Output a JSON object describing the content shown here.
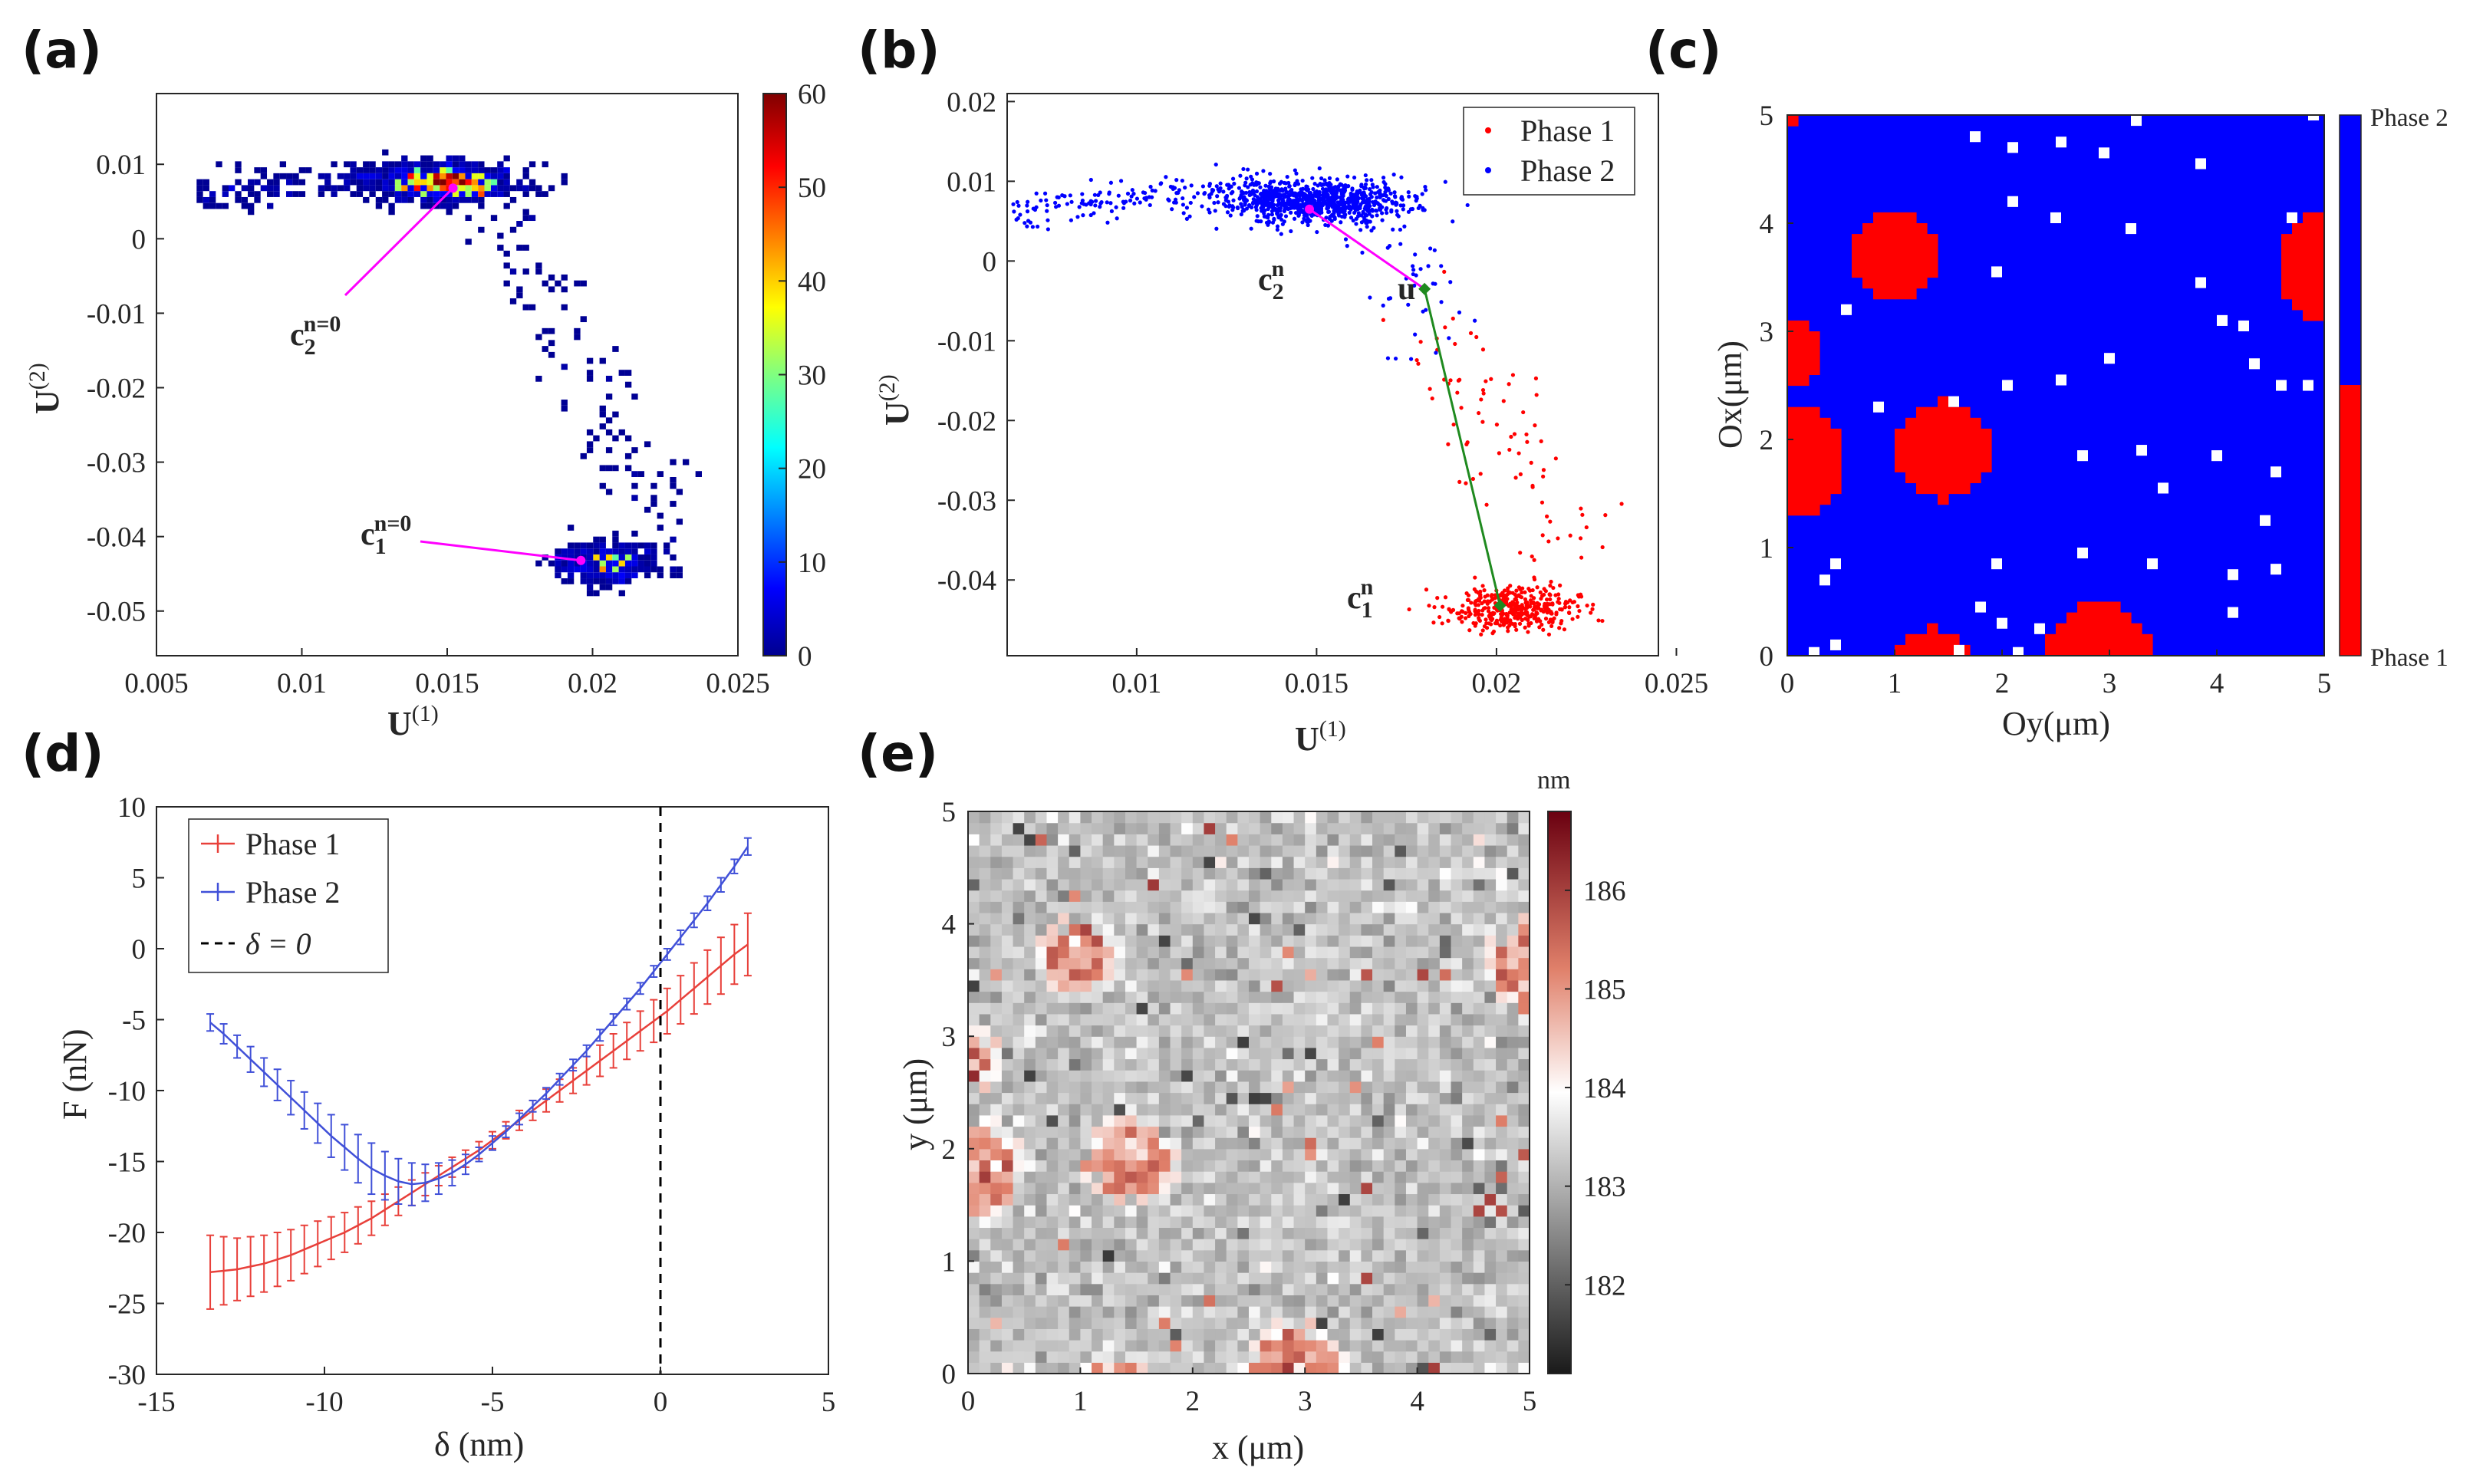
{
  "figure": {
    "panel_labels": [
      "(a)",
      "(b)",
      "(c)",
      "(d)",
      "(e)"
    ]
  },
  "chart_data": [
    {
      "panel": "(a)",
      "type": "heatmap",
      "description_kind": "2D histogram of points in U(1)-U(2) space",
      "xlabel": "U(1)",
      "ylabel": "U(2)",
      "xlabel_main": "U",
      "xlabel_sup": "(1)",
      "ylabel_main": "U",
      "ylabel_sup": "(2)",
      "xlim": [
        0.005,
        0.025
      ],
      "ylim": [
        -0.056,
        0.0195
      ],
      "xticks": [
        0.005,
        0.01,
        0.015,
        0.02,
        0.025
      ],
      "xtick_labels": [
        "0.005",
        "0.01",
        "0.015",
        "0.02",
        "0.025"
      ],
      "yticks": [
        0.01,
        0,
        -0.01,
        -0.02,
        -0.03,
        -0.04,
        -0.05
      ],
      "ytick_labels": [
        "0.01",
        "0",
        "-0.01",
        "-0.02",
        "-0.03",
        "-0.04",
        "-0.05"
      ],
      "colorbar": {
        "min": 0,
        "max": 60,
        "ticks": [
          0,
          10,
          20,
          30,
          40,
          50,
          60
        ],
        "tick_labels": [
          "0",
          "10",
          "20",
          "30",
          "40",
          "50",
          "60"
        ],
        "colormap": "jet"
      },
      "clusters": [
        {
          "center": [
            0.0152,
            0.0072
          ],
          "peak_count": 58
        },
        {
          "center": [
            0.0201,
            -0.0432
          ],
          "peak_count": 22
        }
      ],
      "annotations": [
        {
          "main": "c",
          "sub": "2",
          "sup": "n=0",
          "point": [
            0.0152,
            0.0068
          ]
        },
        {
          "main": "c",
          "sub": "1",
          "sup": "n=0",
          "point": [
            0.0196,
            -0.0432
          ]
        }
      ],
      "annotation_color": "#ff00ff"
    },
    {
      "panel": "(b)",
      "type": "scatter",
      "xlabel": "U(1)",
      "ylabel": "U(2)",
      "xlabel_main": "U",
      "xlabel_sup": "(1)",
      "ylabel_main": "U",
      "ylabel_sup": "(2)",
      "xlim": [
        0.0064,
        0.0245
      ],
      "ylim": [
        -0.0495,
        0.021
      ],
      "xticks": [
        0.01,
        0.015,
        0.02,
        0.025
      ],
      "xtick_labels": [
        "0.01",
        "0.015",
        "0.02",
        "0.025"
      ],
      "yticks": [
        0.02,
        0.01,
        0,
        -0.01,
        -0.02,
        -0.03,
        -0.04
      ],
      "ytick_labels": [
        "0.02",
        "0.01",
        "0",
        "-0.01",
        "-0.02",
        "-0.03",
        "-0.04"
      ],
      "series": [
        {
          "name": "Phase 1",
          "color": "#ff0000"
        },
        {
          "name": "Phase 2",
          "color": "#0000ff"
        }
      ],
      "points_of_interest": {
        "c2": [
          0.0148,
          0.0065
        ],
        "u": [
          0.018,
          -0.0035
        ],
        "c1": [
          0.0201,
          -0.0432
        ]
      },
      "annotations": [
        {
          "main": "c",
          "sub": "2",
          "sup": "n"
        },
        {
          "main": "u"
        },
        {
          "main": "c",
          "sub": "1",
          "sup": "n"
        }
      ],
      "line_colors": {
        "c2_to_u": "#ff00ff",
        "u_to_c1": "#1f8a1f",
        "marker": "#1f8a1f"
      }
    },
    {
      "panel": "(c)",
      "type": "heatmap",
      "description_kind": "Phase classification map",
      "xlabel": "Oy(μm)",
      "ylabel": "Ox(μm)",
      "xlim": [
        0,
        5
      ],
      "ylim": [
        0,
        5
      ],
      "xticks": [
        0,
        1,
        2,
        3,
        4,
        5
      ],
      "xtick_labels": [
        "0",
        "1",
        "2",
        "3",
        "4",
        "5"
      ],
      "yticks": [
        0,
        1,
        2,
        3,
        4,
        5
      ],
      "ytick_labels": [
        "0",
        "1",
        "2",
        "3",
        "4",
        "5"
      ],
      "grid_size": 50,
      "classes": [
        {
          "name": "Phase 1",
          "color": "#ff0000"
        },
        {
          "name": "Phase 2",
          "color": "#0000ff"
        }
      ],
      "blobs": [
        {
          "cx": 1.0,
          "cy": 3.7,
          "r": 0.4
        },
        {
          "cx": 5.05,
          "cy": 3.6,
          "r": 0.5
        },
        {
          "cx": 0.05,
          "cy": 2.8,
          "r": 0.3
        },
        {
          "cx": 0.05,
          "cy": 1.8,
          "r": 0.5
        },
        {
          "cx": 1.45,
          "cy": 1.9,
          "r": 0.45
        },
        {
          "cx": 1.35,
          "cy": -0.2,
          "r": 0.45
        },
        {
          "cx": 2.9,
          "cy": 0.02,
          "r": 0.48
        },
        {
          "cx": 0.03,
          "cy": 5.02,
          "r": 0.12
        }
      ],
      "white_pixels": [
        [
          1.75,
          4.8
        ],
        [
          2.1,
          4.7
        ],
        [
          2.55,
          4.75
        ],
        [
          2.95,
          4.65
        ],
        [
          3.85,
          4.55
        ],
        [
          2.1,
          4.2
        ],
        [
          2.5,
          4.05
        ],
        [
          3.2,
          3.95
        ],
        [
          4.7,
          4.05
        ],
        [
          3.85,
          3.45
        ],
        [
          0.55,
          3.2
        ],
        [
          1.95,
          3.55
        ],
        [
          4.25,
          3.05
        ],
        [
          4.05,
          3.1
        ],
        [
          2.55,
          2.55
        ],
        [
          1.55,
          2.35
        ],
        [
          2.05,
          2.5
        ],
        [
          3.0,
          2.75
        ],
        [
          4.35,
          2.7
        ],
        [
          4.6,
          2.5
        ],
        [
          0.85,
          2.3
        ],
        [
          2.75,
          1.85
        ],
        [
          3.3,
          1.9
        ],
        [
          4.0,
          1.85
        ],
        [
          3.5,
          1.55
        ],
        [
          4.55,
          1.7
        ],
        [
          4.45,
          1.25
        ],
        [
          0.45,
          0.85
        ],
        [
          0.35,
          0.7
        ],
        [
          2.75,
          0.95
        ],
        [
          3.4,
          0.85
        ],
        [
          4.15,
          0.75
        ],
        [
          4.55,
          0.8
        ],
        [
          1.6,
          0.05
        ],
        [
          2.0,
          0.3
        ],
        [
          1.8,
          0.45
        ],
        [
          2.35,
          0.25
        ],
        [
          0.45,
          0.1
        ],
        [
          0.25,
          0.03
        ],
        [
          4.15,
          0.4
        ],
        [
          2.15,
          0.03
        ],
        [
          1.95,
          0.85
        ],
        [
          4.85,
          2.5
        ],
        [
          3.25,
          4.95
        ],
        [
          4.9,
          5.0
        ]
      ],
      "colorbar": {
        "tick_labels": [
          "Phase 2",
          "Phase 1"
        ],
        "split": 0.5
      }
    },
    {
      "panel": "(d)",
      "type": "line",
      "xlabel": "δ (nm)",
      "ylabel": "F (nN)",
      "xlim": [
        -15,
        5
      ],
      "ylim": [
        -30,
        10
      ],
      "xticks": [
        -15,
        -10,
        -5,
        0,
        5
      ],
      "xtick_labels": [
        "-15",
        "-10",
        "-5",
        "0",
        "5"
      ],
      "yticks": [
        10,
        5,
        0,
        -5,
        -10,
        -15,
        -20,
        -25,
        -30
      ],
      "ytick_labels": [
        "10",
        "5",
        "0",
        "-5",
        "-10",
        "-15",
        "-20",
        "-25",
        "-30"
      ],
      "x": [
        -13.4,
        -13.0,
        -12.6,
        -12.2,
        -11.8,
        -11.4,
        -11.0,
        -10.6,
        -10.2,
        -9.8,
        -9.4,
        -9.0,
        -8.6,
        -8.2,
        -7.8,
        -7.4,
        -7.0,
        -6.6,
        -6.2,
        -5.8,
        -5.4,
        -5.0,
        -4.6,
        -4.2,
        -3.8,
        -3.4,
        -3.0,
        -2.6,
        -2.2,
        -1.8,
        -1.4,
        -1.0,
        -0.6,
        -0.2,
        0.2,
        0.6,
        1.0,
        1.4,
        1.8,
        2.2,
        2.6
      ],
      "series": [
        {
          "name": "Phase 1",
          "legend_label": "Phase 1",
          "color": "#e8403a",
          "values": [
            -22.8,
            -22.7,
            -22.6,
            -22.4,
            -22.2,
            -21.9,
            -21.6,
            -21.2,
            -20.8,
            -20.4,
            -20.0,
            -19.5,
            -19.0,
            -18.4,
            -17.8,
            -17.2,
            -16.6,
            -16.0,
            -15.4,
            -14.8,
            -14.2,
            -13.5,
            -12.8,
            -12.1,
            -11.4,
            -10.7,
            -10.0,
            -9.3,
            -8.6,
            -7.9,
            -7.2,
            -6.5,
            -5.8,
            -5.1,
            -4.4,
            -3.6,
            -2.8,
            -2.0,
            -1.2,
            -0.4,
            0.3
          ],
          "errors": [
            2.6,
            2.4,
            2.2,
            2.1,
            2.0,
            1.9,
            1.8,
            1.7,
            1.6,
            1.5,
            1.4,
            1.3,
            1.2,
            1.1,
            1.0,
            0.9,
            0.8,
            0.7,
            0.7,
            0.6,
            0.6,
            0.6,
            0.6,
            0.7,
            0.7,
            0.8,
            0.8,
            0.9,
            1.0,
            1.1,
            1.2,
            1.3,
            1.4,
            1.5,
            1.6,
            1.7,
            1.8,
            1.9,
            2.0,
            2.1,
            2.2
          ]
        },
        {
          "name": "Phase 2",
          "legend_label": "Phase 2",
          "color": "#4050d8",
          "values": [
            -5.2,
            -6.0,
            -6.9,
            -7.8,
            -8.7,
            -9.6,
            -10.5,
            -11.4,
            -12.3,
            -13.2,
            -14.0,
            -14.8,
            -15.5,
            -16.0,
            -16.4,
            -16.6,
            -16.5,
            -16.2,
            -15.8,
            -15.2,
            -14.5,
            -13.7,
            -12.9,
            -12.0,
            -11.1,
            -10.2,
            -9.2,
            -8.2,
            -7.2,
            -6.1,
            -5.0,
            -3.9,
            -2.8,
            -1.6,
            -0.4,
            0.8,
            2.0,
            3.2,
            4.5,
            5.8,
            7.2
          ],
          "errors": [
            0.6,
            0.7,
            0.8,
            0.9,
            1.0,
            1.1,
            1.2,
            1.3,
            1.4,
            1.5,
            1.6,
            1.7,
            1.8,
            1.7,
            1.6,
            1.5,
            1.3,
            1.1,
            0.9,
            0.7,
            0.5,
            0.5,
            0.4,
            0.4,
            0.4,
            0.4,
            0.4,
            0.4,
            0.4,
            0.4,
            0.4,
            0.4,
            0.4,
            0.4,
            0.4,
            0.5,
            0.5,
            0.5,
            0.5,
            0.5,
            0.6
          ]
        }
      ],
      "vline": {
        "x": 0,
        "legend_label": "δ = 0",
        "style": "dashed",
        "color": "#000000"
      }
    },
    {
      "panel": "(e)",
      "type": "heatmap",
      "description_kind": "height map",
      "xlabel": "x (μm)",
      "ylabel": "y (μm)",
      "xlim": [
        0,
        5
      ],
      "ylim": [
        0,
        5
      ],
      "xticks": [
        0,
        1,
        2,
        3,
        4,
        5
      ],
      "xtick_labels": [
        "0",
        "1",
        "2",
        "3",
        "4",
        "5"
      ],
      "yticks": [
        0,
        1,
        2,
        3,
        4,
        5
      ],
      "ytick_labels": [
        "0",
        "1",
        "2",
        "3",
        "4",
        "5"
      ],
      "grid_size": 50,
      "colorbar": {
        "unit": "nm",
        "min": 181.1,
        "max": 186.8,
        "ticks": [
          182,
          183,
          184,
          185,
          186
        ],
        "tick_labels": [
          "182",
          "183",
          "184",
          "185",
          "186"
        ],
        "colormap": "gray-white-red"
      },
      "background_level": 183.2,
      "blob_level": 185.0
    }
  ]
}
